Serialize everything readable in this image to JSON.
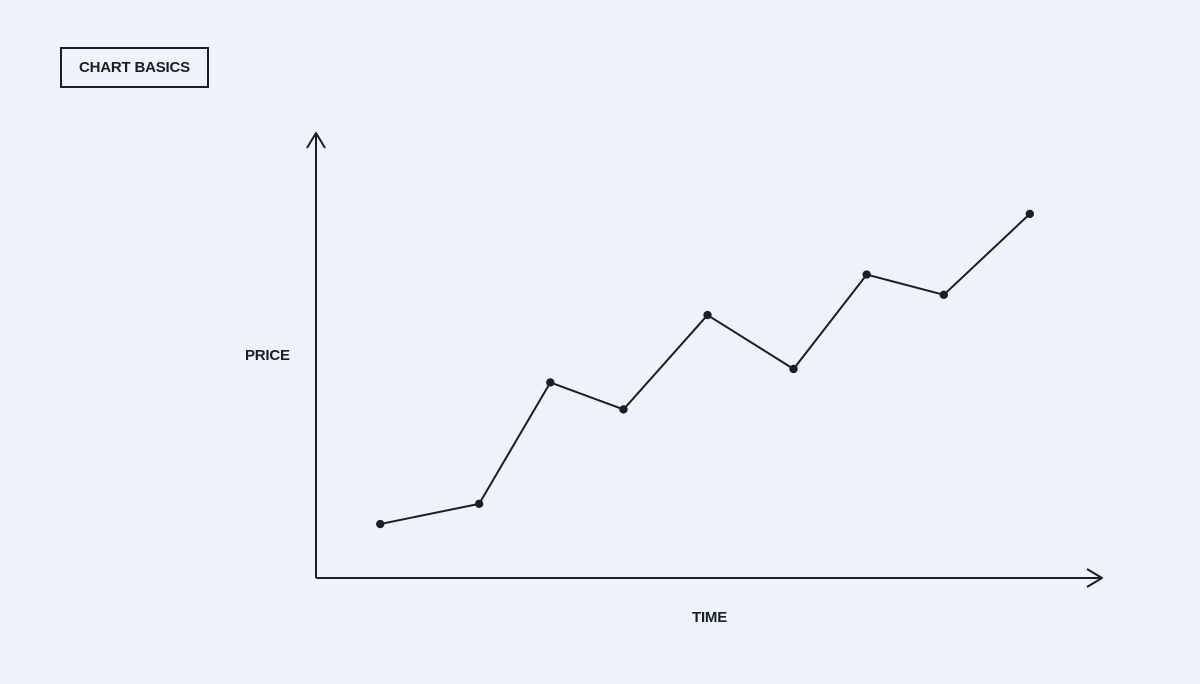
{
  "chart_data": {
    "type": "line",
    "title": "CHART BASICS",
    "xlabel": "TIME",
    "ylabel": "PRICE",
    "x": [
      1.0,
      2.0,
      2.72,
      3.46,
      4.31,
      5.18,
      5.92,
      6.7,
      7.57
    ],
    "series": [
      {
        "values": [
          14,
          17,
          35,
          31,
          45,
          37,
          51,
          48,
          60
        ]
      }
    ],
    "xlim": [
      0.35,
      8.3
    ],
    "ylim": [
      6,
      72
    ],
    "grid": false,
    "legend": "none",
    "axis_arrows": true,
    "colors": {
      "line": "#16202a",
      "axis": "#16202a",
      "background": "#eef2fa"
    }
  }
}
